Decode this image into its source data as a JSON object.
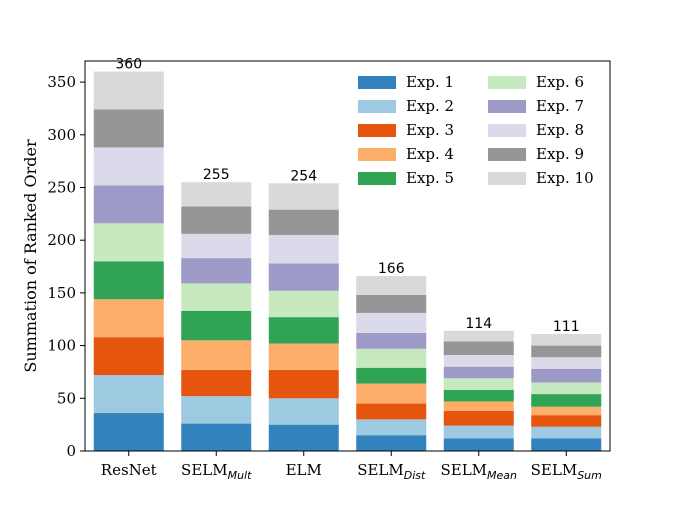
{
  "chart_data": {
    "type": "bar",
    "stacked": true,
    "ylabel": "Summation of Ranked Order",
    "ylim": [
      0,
      370
    ],
    "yticks": [
      0,
      50,
      100,
      150,
      200,
      250,
      300,
      350
    ],
    "categories": [
      {
        "base": "ResNet",
        "sub": ""
      },
      {
        "base": "SELM",
        "sub": "Mult"
      },
      {
        "base": "ELM",
        "sub": ""
      },
      {
        "base": "SELM",
        "sub": "Dist"
      },
      {
        "base": "SELM",
        "sub": "Mean"
      },
      {
        "base": "SELM",
        "sub": "Sum"
      }
    ],
    "totals": [
      "360",
      "255",
      "254",
      "166",
      "114",
      "111"
    ],
    "series": [
      {
        "name": "Exp. 1",
        "color": "#3182bd",
        "values": [
          36,
          26,
          25,
          15,
          12,
          12
        ]
      },
      {
        "name": "Exp. 2",
        "color": "#9ecae1",
        "values": [
          36,
          26,
          25,
          15,
          12,
          11
        ]
      },
      {
        "name": "Exp. 3",
        "color": "#e6550d",
        "values": [
          36,
          25,
          27,
          15,
          14,
          11
        ]
      },
      {
        "name": "Exp. 4",
        "color": "#fdae6b",
        "values": [
          36,
          28,
          25,
          19,
          9,
          8
        ]
      },
      {
        "name": "Exp. 5",
        "color": "#31a354",
        "values": [
          36,
          28,
          25,
          15,
          11,
          12
        ]
      },
      {
        "name": "Exp. 6",
        "color": "#c7e9c0",
        "values": [
          36,
          26,
          25,
          18,
          11,
          11
        ]
      },
      {
        "name": "Exp. 7",
        "color": "#9e9ac8",
        "values": [
          36,
          24,
          26,
          15,
          11,
          13
        ]
      },
      {
        "name": "Exp. 8",
        "color": "#dadaeb",
        "values": [
          36,
          23,
          27,
          19,
          11,
          11
        ]
      },
      {
        "name": "Exp. 9",
        "color": "#969696",
        "values": [
          36,
          26,
          24,
          17,
          13,
          11
        ]
      },
      {
        "name": "Exp. 10",
        "color": "#d9d9d9",
        "values": [
          36,
          23,
          25,
          18,
          10,
          11
        ]
      }
    ],
    "grid": false,
    "legend_position": "top-right"
  }
}
